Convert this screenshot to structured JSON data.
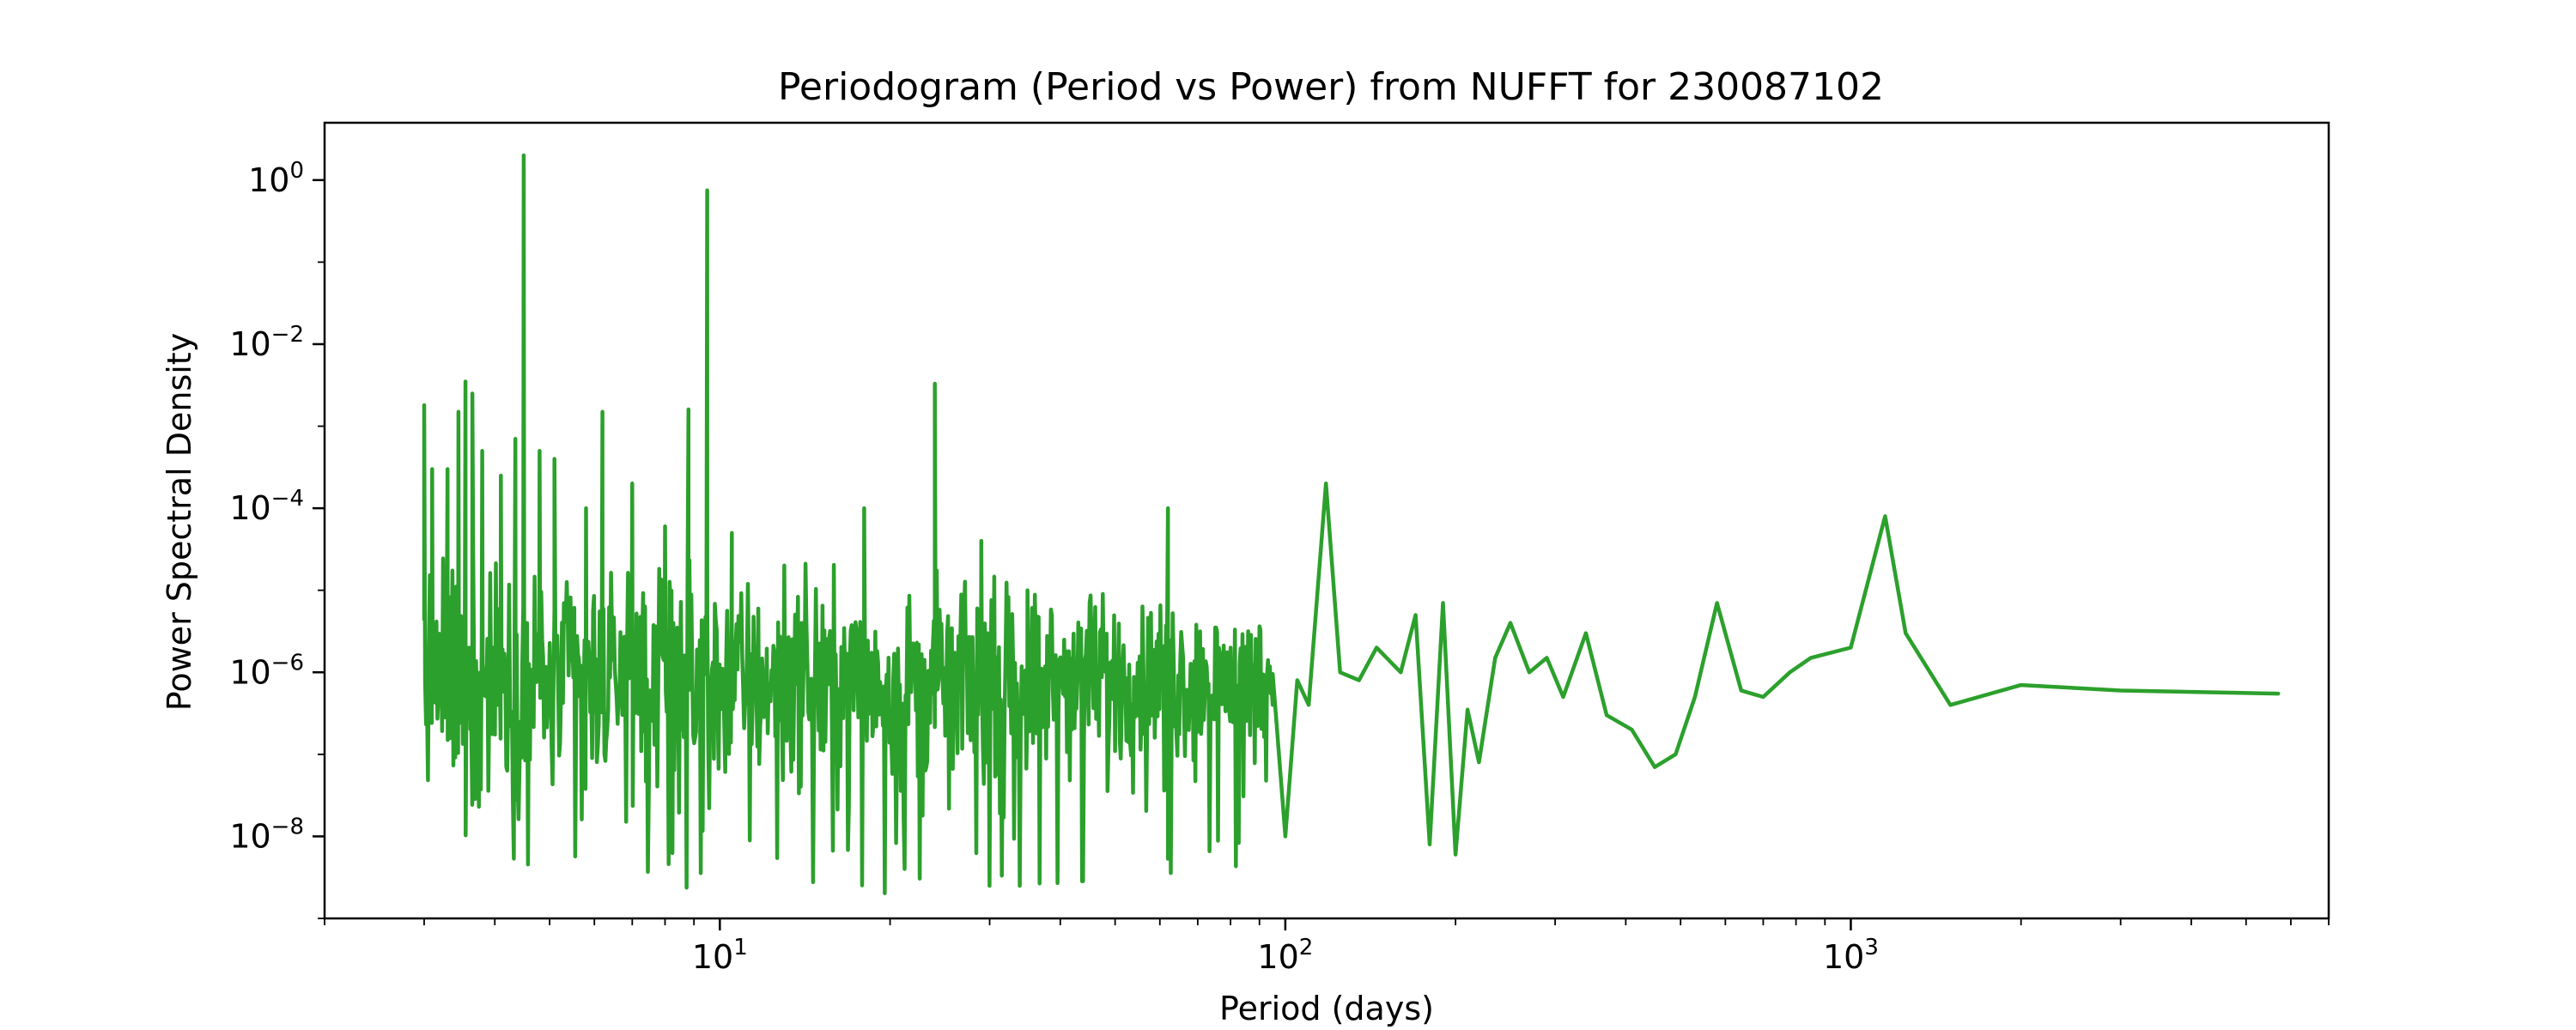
{
  "chart_data": {
    "type": "line",
    "title": "Periodogram (Period vs Power) from NUFFT for 230087102",
    "xlabel": "Period (days)",
    "ylabel": "Power Spectral Density",
    "xscale": "log",
    "yscale": "log",
    "xlim": [
      2.0,
      7000
    ],
    "ylim": [
      1e-09,
      5
    ],
    "grid": false,
    "x_ticks": [
      {
        "base": "10",
        "exp": "1",
        "value": 10
      },
      {
        "base": "10",
        "exp": "2",
        "value": 100
      },
      {
        "base": "10",
        "exp": "3",
        "value": 1000
      }
    ],
    "y_ticks": [
      {
        "base": "10",
        "exp": "0",
        "value": 1
      },
      {
        "base": "10",
        "exp": "−2",
        "value": 0.01
      },
      {
        "base": "10",
        "exp": "−4",
        "value": 0.0001
      },
      {
        "base": "10",
        "exp": "−6",
        "value": 1e-06
      },
      {
        "base": "10",
        "exp": "−8",
        "value": 1e-08
      }
    ],
    "series": [
      {
        "color": "#2ca02c",
        "noise_region": {
          "x_start": 3.0,
          "x_end": 95,
          "count": 900,
          "median": 8e-07
        },
        "points": [
          [
            3.0,
            0.0018
          ],
          [
            3.1,
            0.0003
          ],
          [
            3.3,
            0.0003
          ],
          [
            3.45,
            0.0015
          ],
          [
            3.55,
            0.0035
          ],
          [
            3.65,
            0.0025
          ],
          [
            3.8,
            0.0005
          ],
          [
            4.1,
            0.00025
          ],
          [
            4.35,
            0.0007
          ],
          [
            4.5,
            2.0
          ],
          [
            4.8,
            0.0005
          ],
          [
            5.1,
            0.0004
          ],
          [
            5.8,
            0.0001
          ],
          [
            6.2,
            0.0015
          ],
          [
            7.0,
            0.0002
          ],
          [
            8.0,
            6e-05
          ],
          [
            8.8,
            0.0016
          ],
          [
            9.5,
            0.75
          ],
          [
            10.5,
            5e-05
          ],
          [
            13.0,
            2e-05
          ],
          [
            18.0,
            0.0001
          ],
          [
            24.0,
            0.0033
          ],
          [
            29.0,
            4e-05
          ],
          [
            35.0,
            1e-05
          ],
          [
            45.0,
            3e-06
          ],
          [
            62.0,
            0.0001
          ],
          [
            80.0,
            2e-06
          ],
          [
            95.0,
            4e-07
          ],
          [
            100.0,
            1e-08
          ],
          [
            105.0,
            8e-07
          ],
          [
            110.0,
            4e-07
          ],
          [
            118.0,
            0.0002
          ],
          [
            125.0,
            1e-06
          ],
          [
            135.0,
            8e-07
          ],
          [
            145.0,
            2e-06
          ],
          [
            160.0,
            1e-06
          ],
          [
            170.0,
            5e-06
          ],
          [
            180.0,
            8e-09
          ],
          [
            190.0,
            7e-06
          ],
          [
            200.0,
            6e-09
          ],
          [
            210.0,
            3.5e-07
          ],
          [
            220.0,
            8e-08
          ],
          [
            235.0,
            1.5e-06
          ],
          [
            250.0,
            4e-06
          ],
          [
            270.0,
            1e-06
          ],
          [
            290.0,
            1.5e-06
          ],
          [
            310.0,
            5e-07
          ],
          [
            340.0,
            3e-06
          ],
          [
            370.0,
            3e-07
          ],
          [
            410.0,
            2e-07
          ],
          [
            450.0,
            7e-08
          ],
          [
            490.0,
            1e-07
          ],
          [
            530.0,
            5e-07
          ],
          [
            580.0,
            7e-06
          ],
          [
            640.0,
            6e-07
          ],
          [
            700.0,
            5e-07
          ],
          [
            780.0,
            1e-06
          ],
          [
            850.0,
            1.5e-06
          ],
          [
            1000.0,
            2e-06
          ],
          [
            1150.0,
            8e-05
          ],
          [
            1250.0,
            3e-06
          ],
          [
            1500.0,
            4e-07
          ],
          [
            2000.0,
            7e-07
          ],
          [
            3000.0,
            6e-07
          ],
          [
            5700.0,
            5.5e-07
          ]
        ]
      }
    ]
  }
}
